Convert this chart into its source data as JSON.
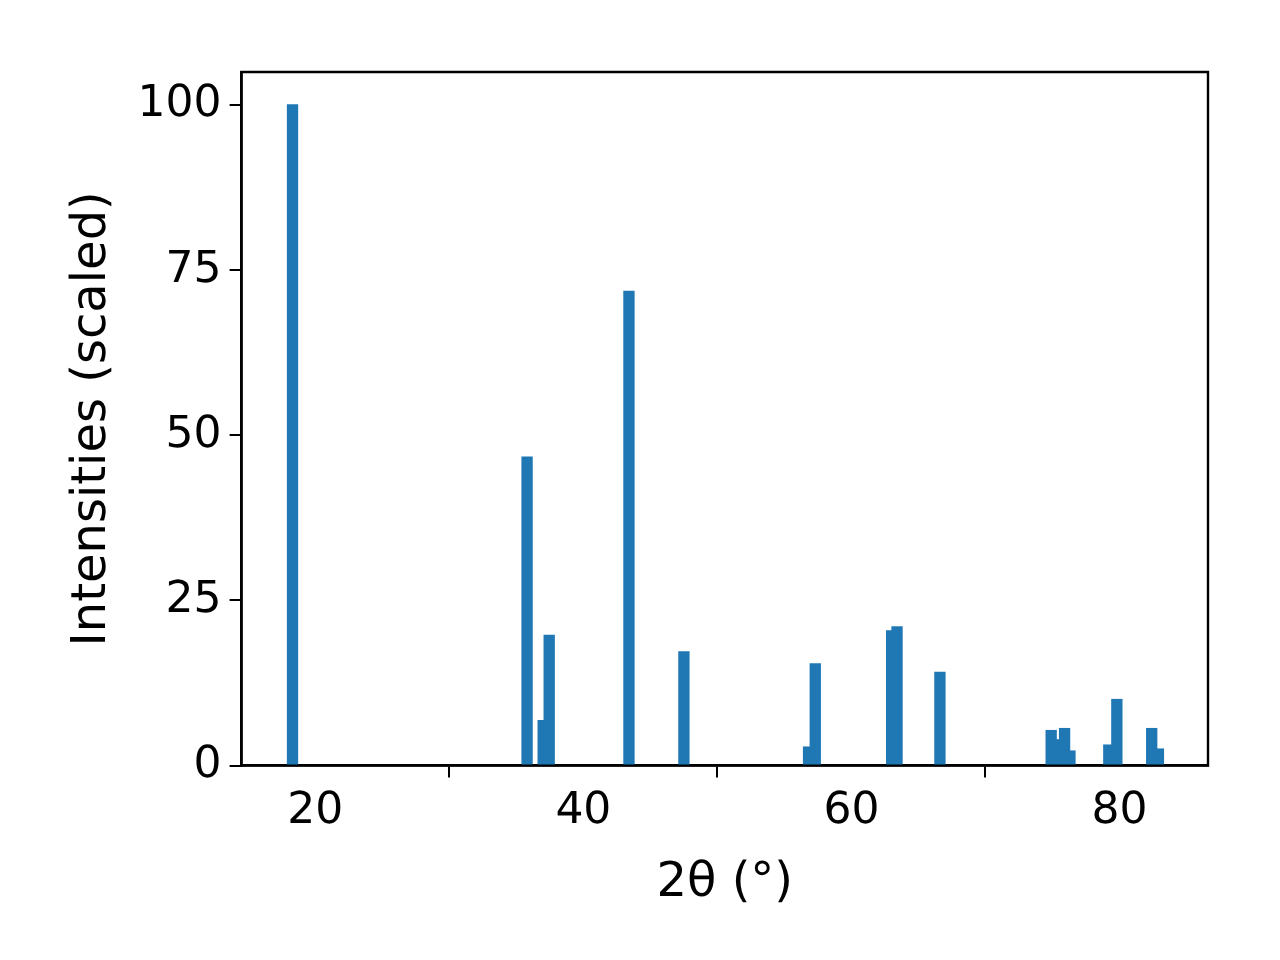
{
  "chart_data": {
    "type": "bar",
    "xlabel": "2θ (°)",
    "ylabel": "Intensities (scaled)",
    "x": [
      18.3,
      35.8,
      37.0,
      37.45,
      43.4,
      47.5,
      56.8,
      57.3,
      63.0,
      63.4,
      66.6,
      74.9,
      75.4,
      75.9,
      76.3,
      79.2,
      79.8,
      82.4,
      82.9
    ],
    "values": [
      100,
      46.7,
      6.8,
      19.7,
      71.8,
      17.2,
      2.8,
      15.4,
      20.4,
      21.0,
      14.1,
      5.3,
      3.9,
      5.6,
      2.2,
      3.1,
      10.0,
      5.6,
      2.5
    ],
    "color": "#1f77b4",
    "xlim": [
      14.5,
      86.6
    ],
    "xticks": [
      20,
      40,
      60,
      80
    ],
    "ylim": [
      0,
      105
    ],
    "yticks": [
      0,
      25,
      50,
      75,
      100
    ],
    "grid": false,
    "legend": false
  }
}
